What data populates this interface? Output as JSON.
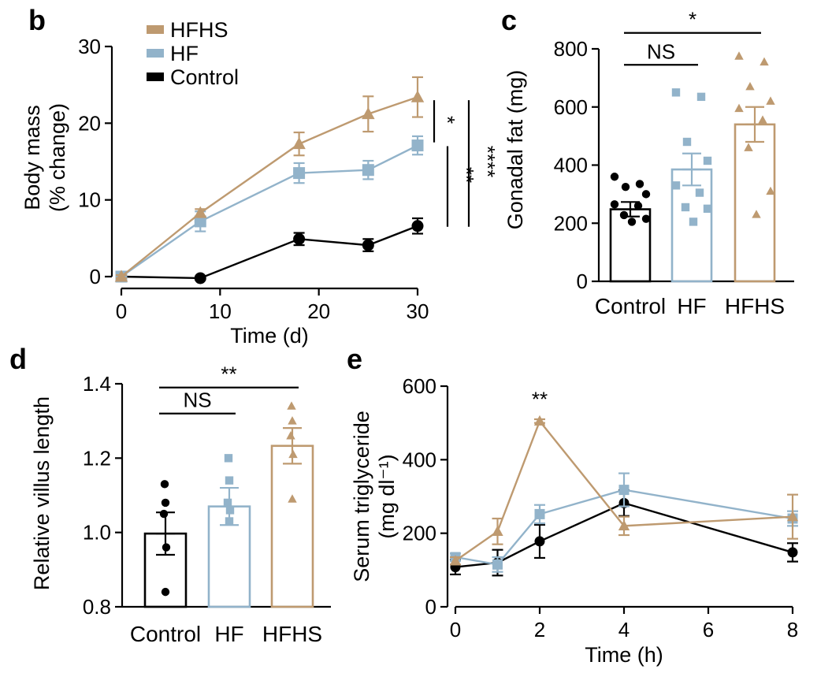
{
  "colors": {
    "control": "#000000",
    "hf": "#92B3CA",
    "hfhs": "#BE9A70"
  },
  "chart_data": [
    {
      "id": "b",
      "letter": "b",
      "type": "line",
      "legend": [
        "HFHS",
        "HF",
        "Control"
      ],
      "xlabel": "Time (d)",
      "ylabel_lines": [
        "Body mass",
        "(% change)"
      ],
      "xlim": [
        0,
        30
      ],
      "ylim": [
        0,
        30
      ],
      "xticks": [
        "0",
        "10",
        "20",
        "30"
      ],
      "yticks": [
        "0",
        "10",
        "20",
        "30"
      ],
      "series": [
        {
          "name": "HFHS",
          "marker": "triangle",
          "x": [
            0,
            8,
            18,
            25,
            30
          ],
          "y": [
            0,
            8.3,
            17.3,
            21.2,
            23.4
          ],
          "err": [
            0.2,
            0.5,
            1.5,
            2.3,
            2.6
          ]
        },
        {
          "name": "HF",
          "marker": "square",
          "x": [
            0,
            8,
            18,
            25,
            30
          ],
          "y": [
            0,
            7.2,
            13.5,
            13.9,
            17.1
          ],
          "err": [
            0.2,
            1.3,
            1.3,
            1.2,
            1.2
          ]
        },
        {
          "name": "Control",
          "marker": "circle",
          "x": [
            0,
            8,
            18,
            25,
            30
          ],
          "y": [
            0,
            -0.2,
            4.9,
            4.1,
            6.6
          ],
          "err": [
            0.2,
            0.2,
            0.8,
            0.8,
            1.0
          ]
        }
      ],
      "significance": [
        {
          "label": "*",
          "y0": 23.0,
          "y1": 17.5
        },
        {
          "label": "**",
          "y0": 17.0,
          "y1": 6.5
        },
        {
          "label": "****",
          "y0": 23.0,
          "y1": 6.5
        }
      ]
    },
    {
      "id": "c",
      "letter": "c",
      "type": "bar",
      "categories": [
        "Control",
        "HF",
        "HFHS"
      ],
      "ylabel": "Gonadal fat (mg)",
      "ylim": [
        0,
        800
      ],
      "yticks": [
        "0",
        "200",
        "400",
        "600",
        "800"
      ],
      "means": [
        248,
        385,
        540
      ],
      "sem": [
        25,
        55,
        60
      ],
      "points": [
        [
          360,
          335,
          325,
          300,
          265,
          260,
          228,
          215,
          205
        ],
        [
          650,
          635,
          480,
          415,
          330,
          305,
          255,
          250,
          205
        ],
        [
          775,
          755,
          670,
          620,
          595,
          555,
          460,
          310,
          230
        ]
      ],
      "brackets": [
        {
          "label": "NS",
          "from": 0,
          "to": 1,
          "y": 745
        },
        {
          "label": "*",
          "from": 0,
          "to": 2,
          "y": 855
        }
      ]
    },
    {
      "id": "d",
      "letter": "d",
      "type": "bar",
      "categories": [
        "Control",
        "HF",
        "HFHS"
      ],
      "ylabel": "Relative villus length",
      "ylim": [
        0.8,
        1.4
      ],
      "yticks": [
        "0.8",
        "1.0",
        "1.2",
        "1.4"
      ],
      "means": [
        0.997,
        1.07,
        1.233
      ],
      "sem": [
        0.057,
        0.05,
        0.048
      ],
      "points": [
        [
          1.13,
          1.08,
          1.05,
          0.96,
          0.84
        ],
        [
          1.2,
          1.14,
          1.08,
          1.06,
          1.03
        ],
        [
          1.34,
          1.3,
          1.26,
          1.21,
          1.09
        ]
      ],
      "brackets": [
        {
          "label": "NS",
          "from": 0,
          "to": 1,
          "y": 1.32
        },
        {
          "label": "**",
          "from": 0,
          "to": 2,
          "y": 1.39
        }
      ]
    },
    {
      "id": "e",
      "letter": "e",
      "type": "line",
      "xlabel": "Time (h)",
      "ylabel_lines": [
        "Serum triglyceride",
        "(mg dl⁻¹)"
      ],
      "xlim": [
        0,
        8
      ],
      "ylim": [
        0,
        600
      ],
      "xticks": [
        "0",
        "2",
        "4",
        "6",
        "8"
      ],
      "yticks": [
        "0",
        "200",
        "400",
        "600"
      ],
      "series": [
        {
          "name": "HFHS",
          "marker": "triangle",
          "x": [
            0,
            1,
            2,
            4,
            8
          ],
          "y": [
            125,
            205,
            505,
            220,
            245
          ],
          "err": [
            10,
            35,
            5,
            25,
            60
          ]
        },
        {
          "name": "HF",
          "marker": "square",
          "x": [
            0,
            1,
            2,
            4,
            8
          ],
          "y": [
            135,
            115,
            252,
            318,
            240
          ],
          "err": [
            10,
            20,
            25,
            45,
            20
          ]
        },
        {
          "name": "Control",
          "marker": "circle",
          "x": [
            0,
            1,
            2,
            4,
            8
          ],
          "y": [
            108,
            120,
            178,
            282,
            148
          ],
          "err": [
            20,
            35,
            45,
            35,
            25
          ]
        }
      ],
      "annotation": {
        "label": "**",
        "x": 2,
        "y": 545
      }
    }
  ]
}
